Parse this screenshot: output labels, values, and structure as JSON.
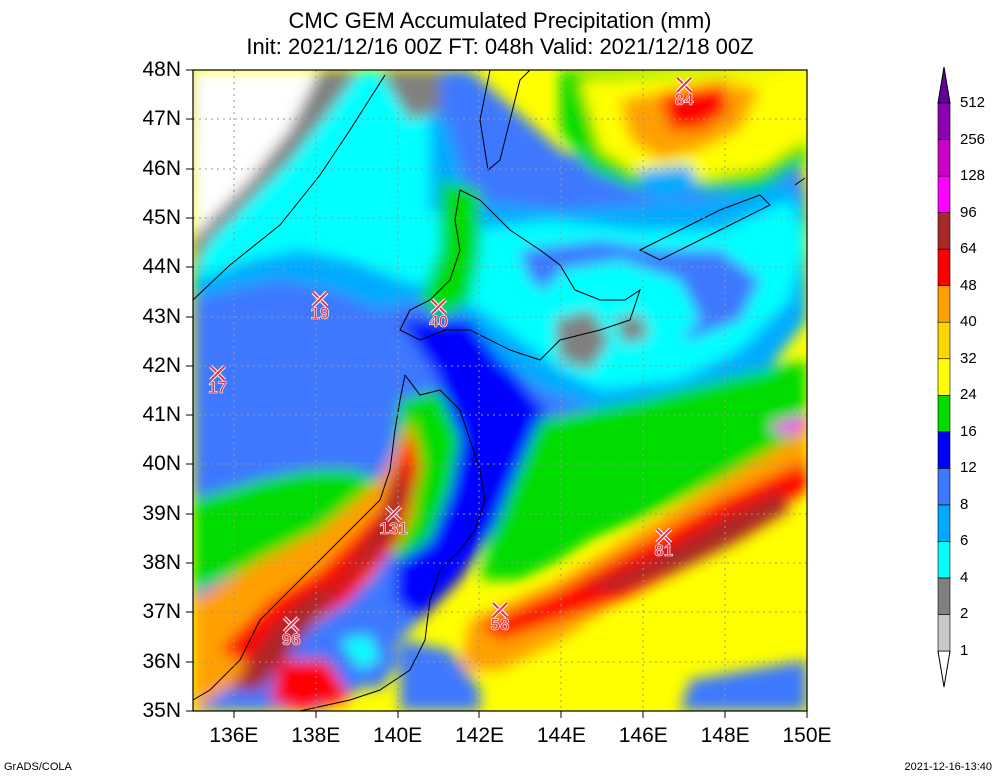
{
  "title": {
    "line1": "CMC GEM Accumulated Precipitation (mm)",
    "line2": "Init: 2021/12/16 00Z  FT: 048h  Valid: 2021/12/18 00Z"
  },
  "axes": {
    "lat_labels": [
      "48N",
      "47N",
      "46N",
      "45N",
      "44N",
      "43N",
      "42N",
      "41N",
      "40N",
      "39N",
      "38N",
      "37N",
      "36N",
      "35N"
    ],
    "lon_labels": [
      "136E",
      "138E",
      "140E",
      "142E",
      "144E",
      "146E",
      "148E",
      "150E"
    ],
    "lat_range": [
      35,
      48
    ],
    "lon_range": [
      135,
      150
    ]
  },
  "colorbar": {
    "levels": [
      "1",
      "2",
      "4",
      "6",
      "8",
      "12",
      "16",
      "24",
      "32",
      "40",
      "48",
      "64",
      "96",
      "128",
      "256",
      "512"
    ],
    "colors": [
      "#ffffff",
      "#c8c8c8",
      "#808080",
      "#00ffff",
      "#00aaff",
      "#3c78ff",
      "#0000ff",
      "#00dc00",
      "#ffff00",
      "#ffd700",
      "#ffa000",
      "#ff0000",
      "#aa2828",
      "#ff00ff",
      "#c800c8",
      "#8c00b4",
      "#6400a0"
    ]
  },
  "stations": [
    {
      "value": "19",
      "lat": 43.35,
      "lon": 138.1
    },
    {
      "value": "40",
      "lat": 43.2,
      "lon": 141.0
    },
    {
      "value": "17",
      "lat": 41.85,
      "lon": 135.6
    },
    {
      "value": "84",
      "lat": 47.7,
      "lon": 147.0
    },
    {
      "value": "131",
      "lat": 39.0,
      "lon": 139.9
    },
    {
      "value": "81",
      "lat": 38.55,
      "lon": 146.5
    },
    {
      "value": "96",
      "lat": 36.75,
      "lon": 137.4
    },
    {
      "value": "58",
      "lat": 37.05,
      "lon": 142.5
    }
  ],
  "footer": {
    "left": "GrADS/COLA",
    "right": "2021-12-16-13:40"
  }
}
